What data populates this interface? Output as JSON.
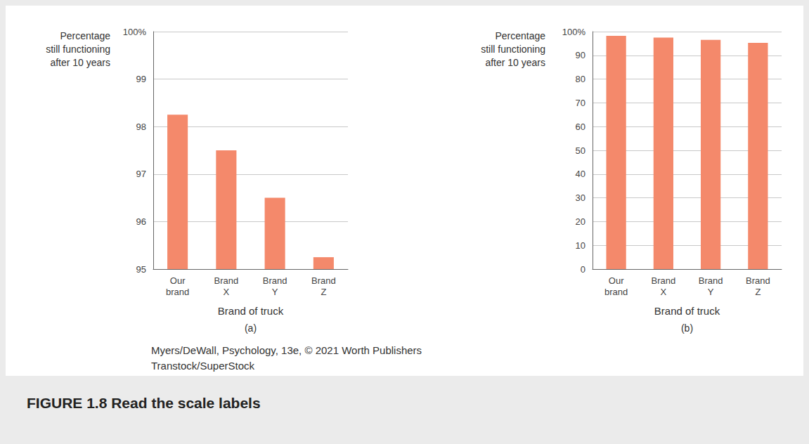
{
  "chart_data": [
    {
      "type": "bar",
      "title": "(a)",
      "ylabel": "Percentage\nstill functioning\nafter 10 years",
      "xlabel": "Brand of truck",
      "categories": [
        "Our brand",
        "Brand X",
        "Brand Y",
        "Brand Z"
      ],
      "values": [
        98.25,
        97.5,
        96.5,
        95.25
      ],
      "color": "#f4896b",
      "ylim": [
        95,
        100
      ],
      "yticks": [
        95,
        96,
        97,
        98,
        99,
        {
          "value": 100,
          "label": "100%"
        }
      ],
      "grid": true
    },
    {
      "type": "bar",
      "title": "(b)",
      "ylabel": "Percentage\nstill functioning\nafter 10 years",
      "xlabel": "Brand of truck",
      "categories": [
        "Our brand",
        "Brand X",
        "Brand Y",
        "Brand Z"
      ],
      "values": [
        98.25,
        97.5,
        96.5,
        95.25
      ],
      "color": "#f4896b",
      "ylim": [
        0,
        100
      ],
      "yticks": [
        0,
        10,
        20,
        30,
        40,
        50,
        60,
        70,
        80,
        90,
        {
          "value": 100,
          "label": "100%"
        }
      ],
      "grid": true
    }
  ],
  "credits": [
    "Myers/DeWall, Psychology, 13e, © 2021 Worth Publishers",
    "Transtock/SuperStock"
  ],
  "caption": "FIGURE 1.8 Read the scale labels"
}
